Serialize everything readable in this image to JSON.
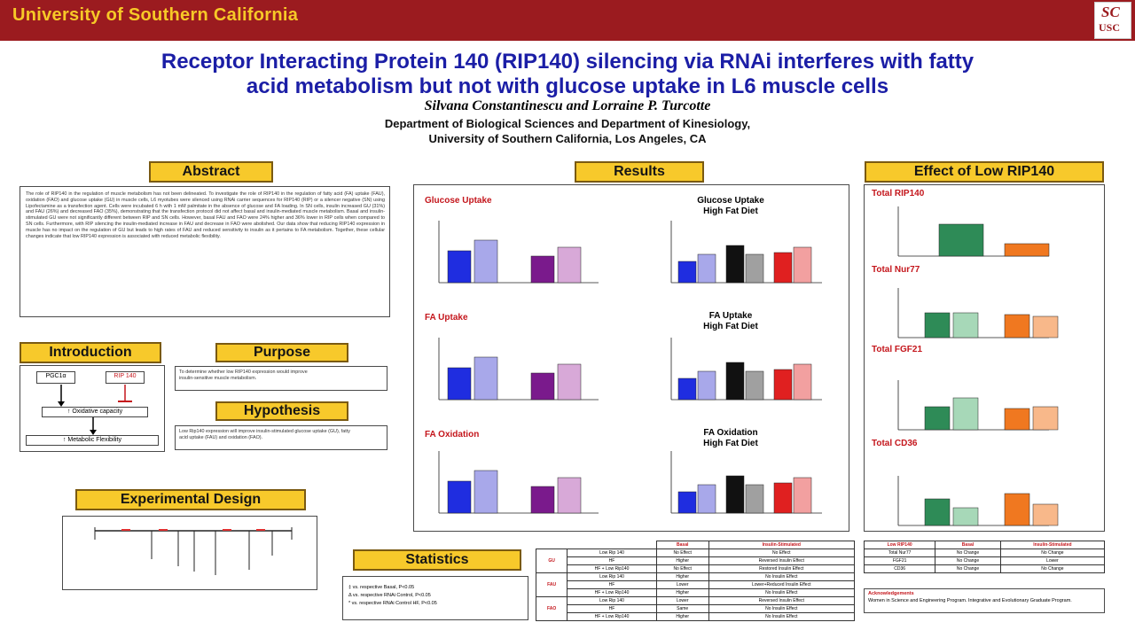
{
  "header": {
    "university": "University of Southern California",
    "logo_top": "SC",
    "logo_bottom": "USC"
  },
  "poster": {
    "title_line1": "Receptor Interacting Protein 140 (RIP140) silencing via RNAi interferes with fatty",
    "title_line2": "acid metabolism but not with glucose uptake in L6 muscle cells",
    "authors": "Silvana Constantinescu and Lorraine P. Turcotte",
    "affiliation_line1": "Department of Biological Sciences and Department of Kinesiology,",
    "affiliation_line2": "University of Southern California, Los Angeles, CA"
  },
  "sections": {
    "abstract": "Abstract",
    "introduction": "Introduction",
    "purpose": "Purpose",
    "hypothesis": "Hypothesis",
    "experimental_design": "Experimental Design",
    "results": "Results",
    "statistics": "Statistics",
    "effect": "Effect of Low RIP140"
  },
  "abstract_text": "The role of RIP140 in the regulation of muscle metabolism has not been delineated. To investigate the role of RIP140 in the regulation of fatty acid (FA) uptake (FAU), oxidation (FAO) and glucose uptake (GU) in muscle cells, L6 myotubes were silenced using RNAi carrier sequences for RIP140 (RIP) or a silencer negative (SN) using Lipofectamine as a transfection agent. Cells were incubated 6 h with 1 mM palmitate in the absence of glucose and FA loading. In SN cells, insulin increased GU (31%) and FAU (26%) and decreased FAO (35%), demonstrating that the transfection protocol did not affect basal and insulin-mediated muscle metabolism. Basal and insulin-stimulated GU were not significantly different between RIP and SN cells. However, basal FAU and FAO were 24% higher and 36% lower in RIP cells when compared to SN cells. Furthermore, with RIP silencing the insulin-mediated increase in FAU and decrease in FAO were abolished. Our data show that reducing RIP140 expression in muscle has no impact on the regulation of GU but leads to high rates of FAU and reduced sensitivity to insulin as it pertains to FA metabolism. Together, these cellular changes indicate that low RIP140 expression is associated with reduced metabolic flexibility.",
  "introduction": {
    "node_pgc": "PGC1α",
    "node_rip": "RIP 140",
    "node_oxidative": "↑ Oxidative capacity",
    "node_flex": "↑ Metabolic Flexibility"
  },
  "purpose_text": "To determine whether low RIP140 expression would improve insulin-sensitive muscle metabolism.",
  "hypothesis_text": "Low Rip140 expression will improve insulin-stimulated glucose uptake (GU), fatty acid uptake (FAU) and oxidation (FAO).",
  "results": {
    "glucose_uptake": "Glucose Uptake",
    "glucose_uptake_hfd_1": "Glucose Uptake",
    "glucose_uptake_hfd_2": "High Fat Diet",
    "fa_uptake": "FA Uptake",
    "fa_uptake_hfd_1": "FA Uptake",
    "fa_uptake_hfd_2": "High Fat Diet",
    "fa_oxidation": "FA Oxidation",
    "fa_oxidation_hfd_1": "FA Oxidation",
    "fa_oxidation_hfd_2": "High Fat Diet"
  },
  "effect": {
    "total_rip140": "Total RIP140",
    "total_nur77": "Total Nur77",
    "total_fgf21": "Total FGF21",
    "total_cd36": "Total CD36"
  },
  "statistics_lines": [
    "‡ vs. respective Basal, P<0.05",
    "Δ vs. respective RNAi Control, P<0.05",
    "* vs. respective RNAi Control HF, P<0.05"
  ],
  "summary_table": {
    "headers": [
      "",
      "",
      "Basal",
      "Insulin-Stimulated"
    ],
    "groups": [
      {
        "label": "GU",
        "rows": [
          [
            "Low Rip 140",
            "No Effect",
            "No Effect"
          ],
          [
            "HF",
            "Higher",
            "Reversed Insulin Effect"
          ],
          [
            "HF + Low Rip140",
            "No Effect",
            "Restored Insulin Effect"
          ]
        ]
      },
      {
        "label": "FAU",
        "rows": [
          [
            "Low Rip 140",
            "Higher",
            "No Insulin Effect"
          ],
          [
            "HF",
            "Lower",
            "Lower+Reduced Insulin Effect"
          ],
          [
            "HF + Low Rip140",
            "Higher",
            "No Insulin Effect"
          ]
        ]
      },
      {
        "label": "FAO",
        "rows": [
          [
            "Low Rip 140",
            "Lower",
            "Reversed Insulin Effect"
          ],
          [
            "HF",
            "Same",
            "No Insulin Effect"
          ],
          [
            "HF + Low Rip140",
            "Higher",
            "No Insulin Effect"
          ]
        ]
      }
    ]
  },
  "effect_table": {
    "headers": [
      "Low RIP140",
      "Basal",
      "Insulin-Stimulated"
    ],
    "rows": [
      [
        "Total Nur77",
        "No Change",
        "No Change"
      ],
      [
        "FGF21",
        "No Change",
        "Lower"
      ],
      [
        "CD36",
        "No Change",
        "No Change"
      ]
    ]
  },
  "acknowledgements": {
    "title": "Acknowledgements",
    "text": "Women in Science and Engineering Program. Integrative and Evolutionary Graduate Program."
  },
  "colors": {
    "header_bg": "#9b1b1f",
    "header_text": "#f7c927",
    "title": "#1b1ea6",
    "section_label": "#f7c92b",
    "blue": "#1f2de0",
    "light_blue": "#a8a8ea",
    "purple": "#7a1a8c",
    "pink": "#d8a9d8",
    "black": "#111111",
    "gray": "#a0a0a0",
    "red": "#e02020",
    "light_red": "#f2a0a0",
    "green": "#2e8b57",
    "light_green": "#a7d8b8",
    "orange": "#f07820",
    "light_orange": "#f8b88a"
  }
}
